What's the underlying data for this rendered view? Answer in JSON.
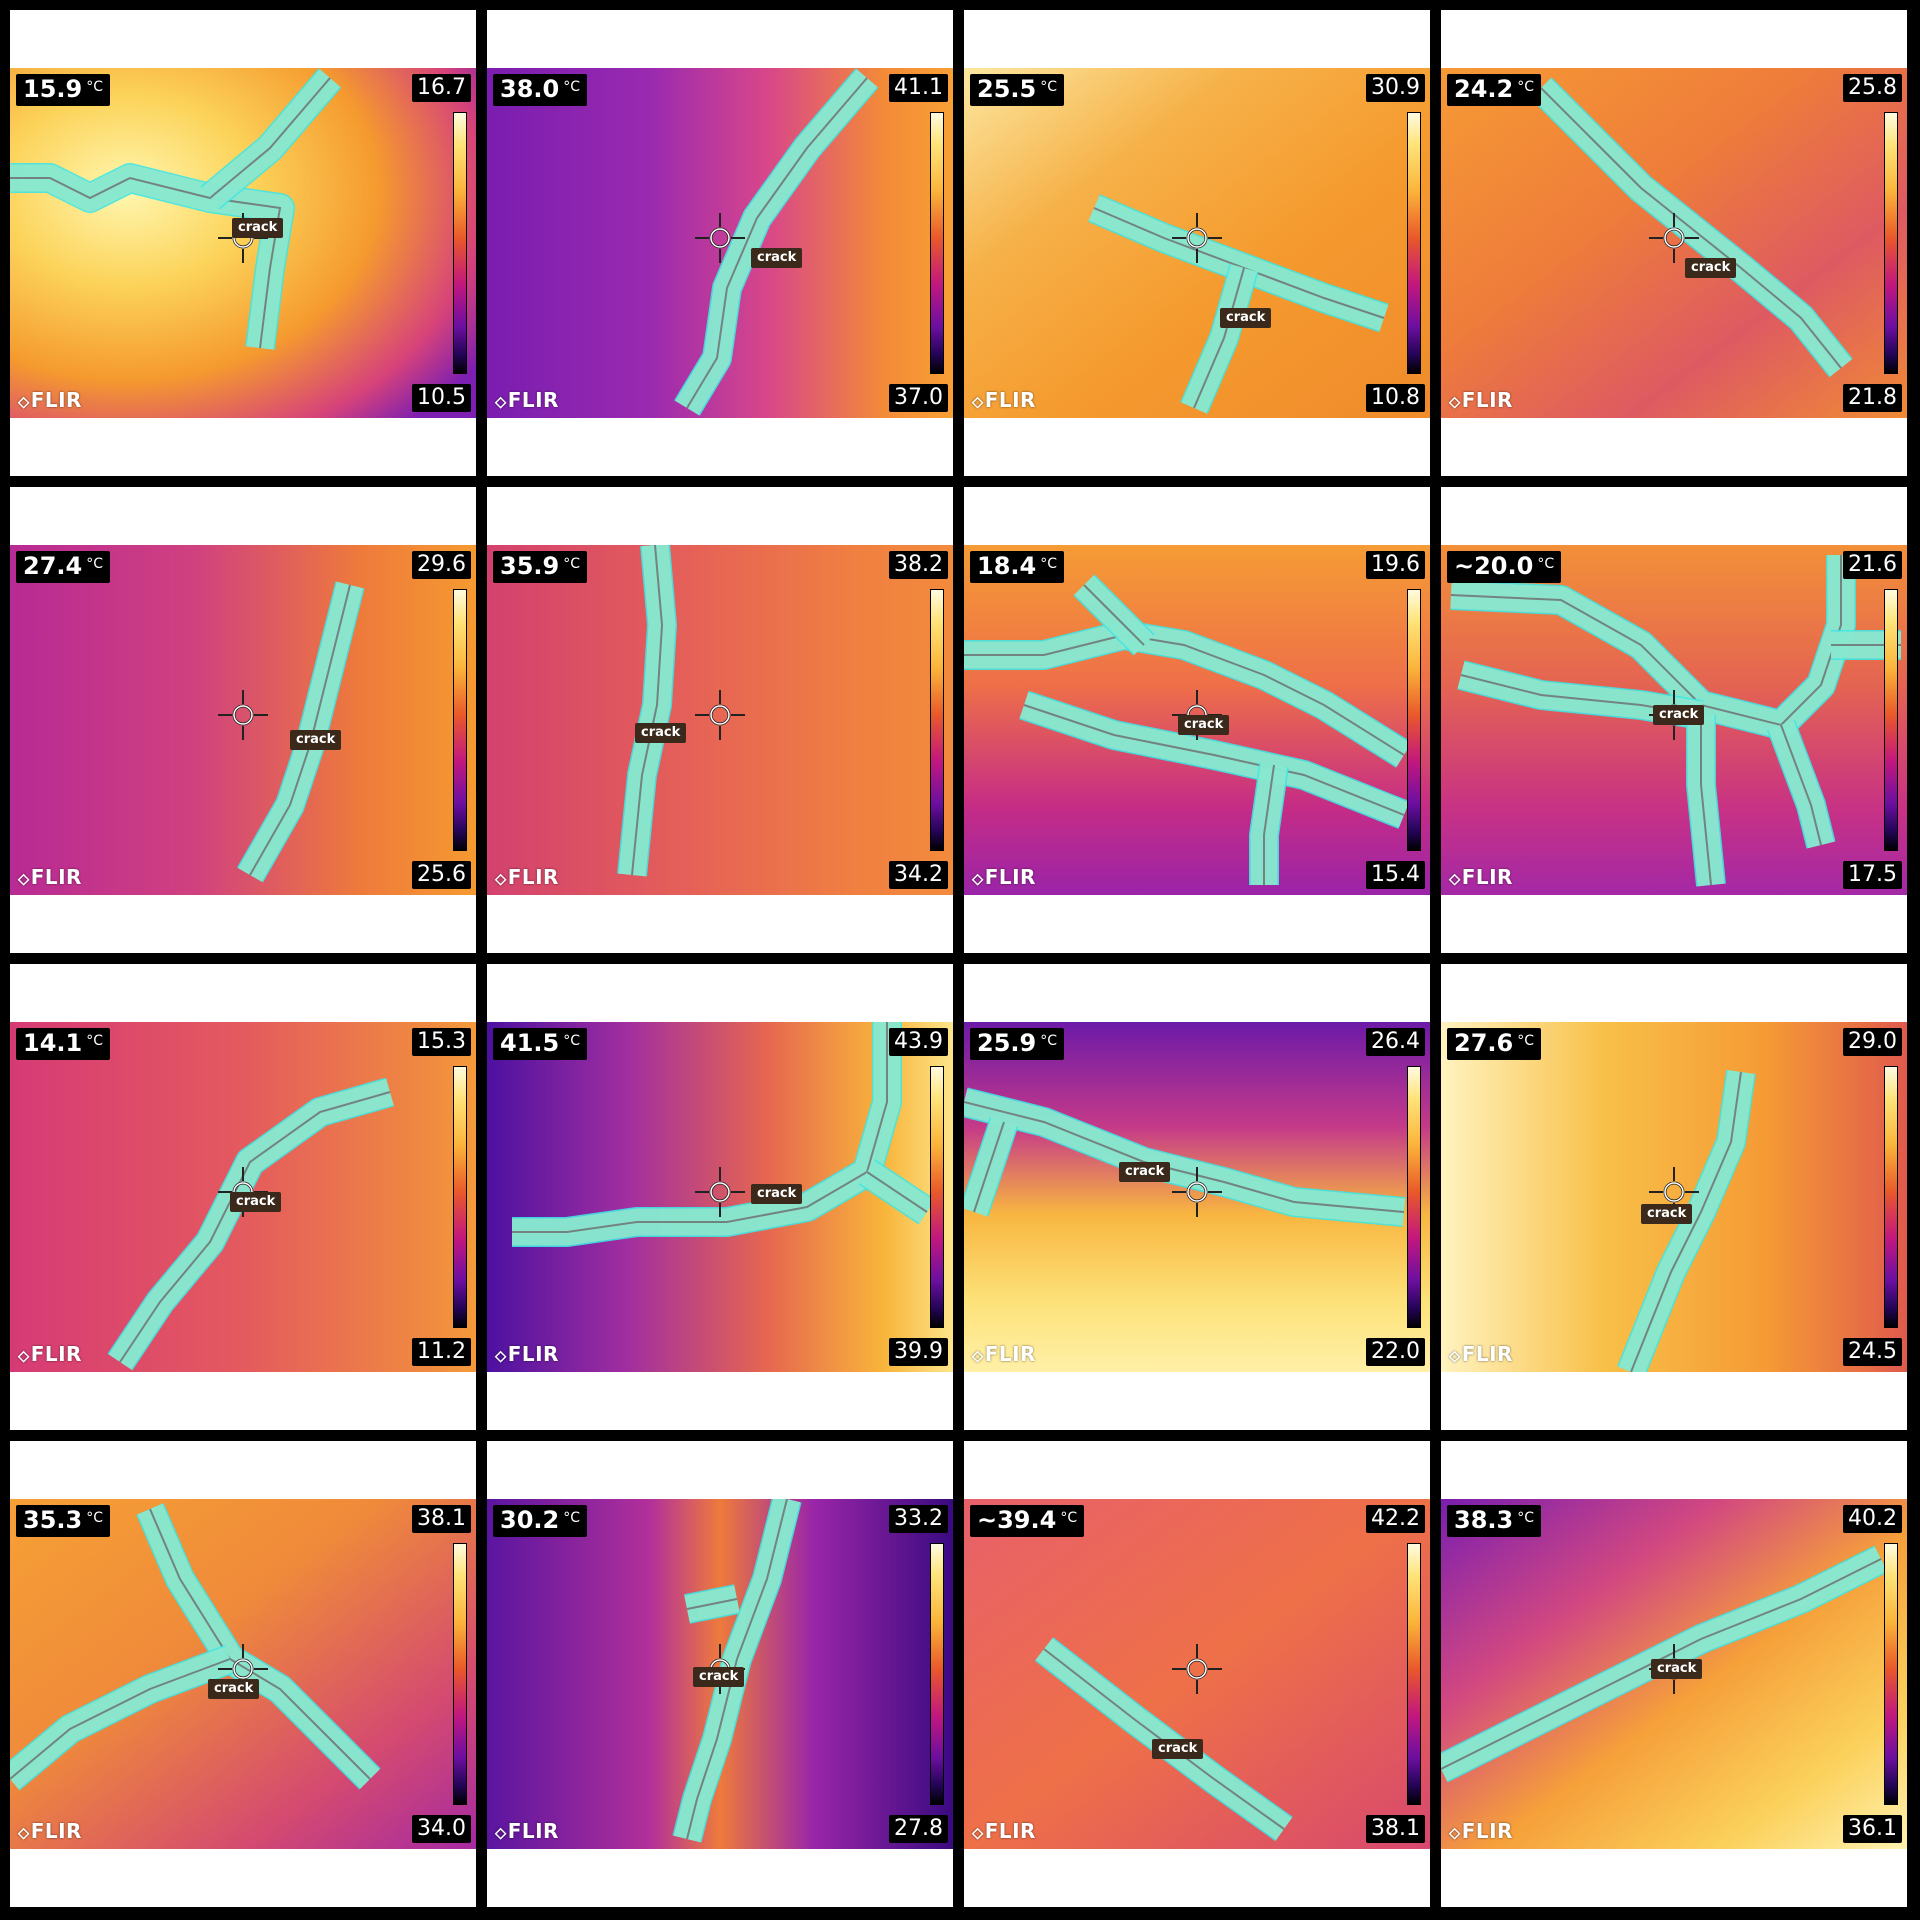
{
  "panels": [
    {
      "temp": "15.9",
      "unit": "°C",
      "max": "16.7",
      "min": "10.5",
      "label": "crack",
      "logo": "FLIR"
    },
    {
      "temp": "38.0",
      "unit": "°C",
      "max": "41.1",
      "min": "37.0",
      "label": "crack",
      "logo": "FLIR"
    },
    {
      "temp": "25.5",
      "unit": "°C",
      "max": "30.9",
      "min": "10.8",
      "label": "crack",
      "logo": "FLIR"
    },
    {
      "temp": "24.2",
      "unit": "°C",
      "max": "25.8",
      "min": "21.8",
      "label": "crack",
      "logo": "FLIR"
    },
    {
      "temp": "27.4",
      "unit": "°C",
      "max": "29.6",
      "min": "25.6",
      "label": "crack",
      "logo": "FLIR"
    },
    {
      "temp": "35.9",
      "unit": "°C",
      "max": "38.2",
      "min": "34.2",
      "label": "crack",
      "logo": "FLIR"
    },
    {
      "temp": "18.4",
      "unit": "°C",
      "max": "19.6",
      "min": "15.4",
      "label": "crack",
      "logo": "FLIR"
    },
    {
      "temp": "~20.0",
      "unit": "°C",
      "max": "21.6",
      "min": "17.5",
      "label": "crack",
      "logo": "FLIR"
    },
    {
      "temp": "14.1",
      "unit": "°C",
      "max": "15.3",
      "min": "11.2",
      "label": "crack",
      "logo": "FLIR"
    },
    {
      "temp": "41.5",
      "unit": "°C",
      "max": "43.9",
      "min": "39.9",
      "label": "crack",
      "logo": "FLIR"
    },
    {
      "temp": "25.9",
      "unit": "°C",
      "max": "26.4",
      "min": "22.0",
      "label": "crack",
      "logo": "FLIR"
    },
    {
      "temp": "27.6",
      "unit": "°C",
      "max": "29.0",
      "min": "24.5",
      "label": "crack",
      "logo": "FLIR"
    },
    {
      "temp": "35.3",
      "unit": "°C",
      "max": "38.1",
      "min": "34.0",
      "label": "crack",
      "logo": "FLIR"
    },
    {
      "temp": "30.2",
      "unit": "°C",
      "max": "33.2",
      "min": "27.8",
      "label": "crack",
      "logo": "FLIR"
    },
    {
      "temp": "~39.4",
      "unit": "°C",
      "max": "42.2",
      "min": "38.1",
      "label": "crack",
      "logo": "FLIR"
    },
    {
      "temp": "38.3",
      "unit": "°C",
      "max": "40.2",
      "min": "36.1",
      "label": "crack",
      "logo": "FLIR"
    }
  ],
  "colors": {
    "crack_outline": "#3ee6e6",
    "crack_fill": "#9ee8c8",
    "label_bg": "#3b2a1c",
    "frame": "#000000"
  }
}
